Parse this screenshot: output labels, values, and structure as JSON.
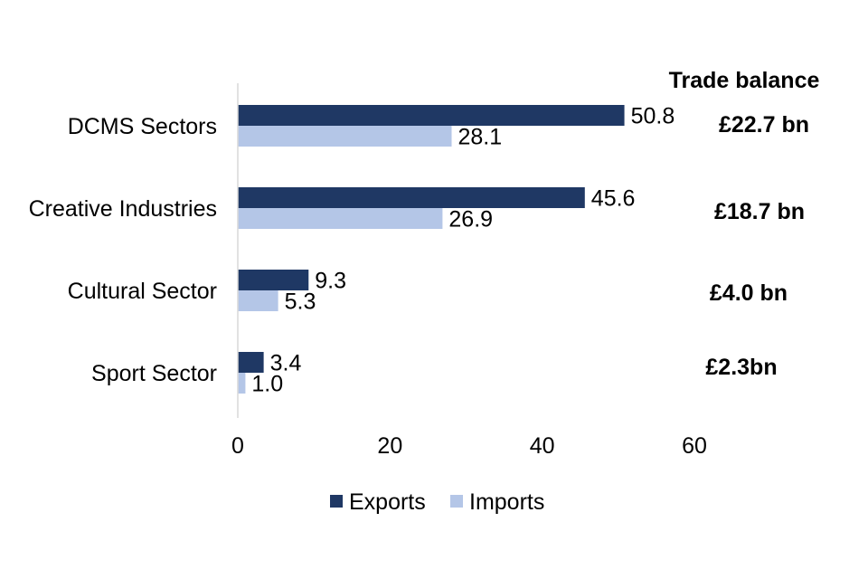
{
  "chart_data": {
    "type": "bar",
    "orientation": "horizontal",
    "categories": [
      "DCMS Sectors",
      "Creative Industries",
      "Cultural Sector",
      "Sport Sector"
    ],
    "series": [
      {
        "name": "Exports",
        "values": [
          50.8,
          45.6,
          9.3,
          3.4
        ],
        "color": "#1f3864"
      },
      {
        "name": "Imports",
        "values": [
          28.1,
          26.9,
          5.3,
          1.0
        ],
        "color": "#b4c6e7"
      }
    ],
    "data_labels": {
      "Exports": [
        "50.8",
        "45.6",
        "9.3",
        "3.4"
      ],
      "Imports": [
        "28.1",
        "26.9",
        "5.3",
        "1.0"
      ]
    },
    "xlim": [
      0,
      60
    ],
    "x_ticks": [
      "0",
      "20",
      "40",
      "60"
    ],
    "grid": false,
    "legend_position": "bottom",
    "annotations": {
      "header": "Trade balance",
      "trade_balance": [
        "£22.7 bn",
        "£18.7 bn",
        "£4.0 bn",
        "£2.3bn"
      ]
    }
  }
}
